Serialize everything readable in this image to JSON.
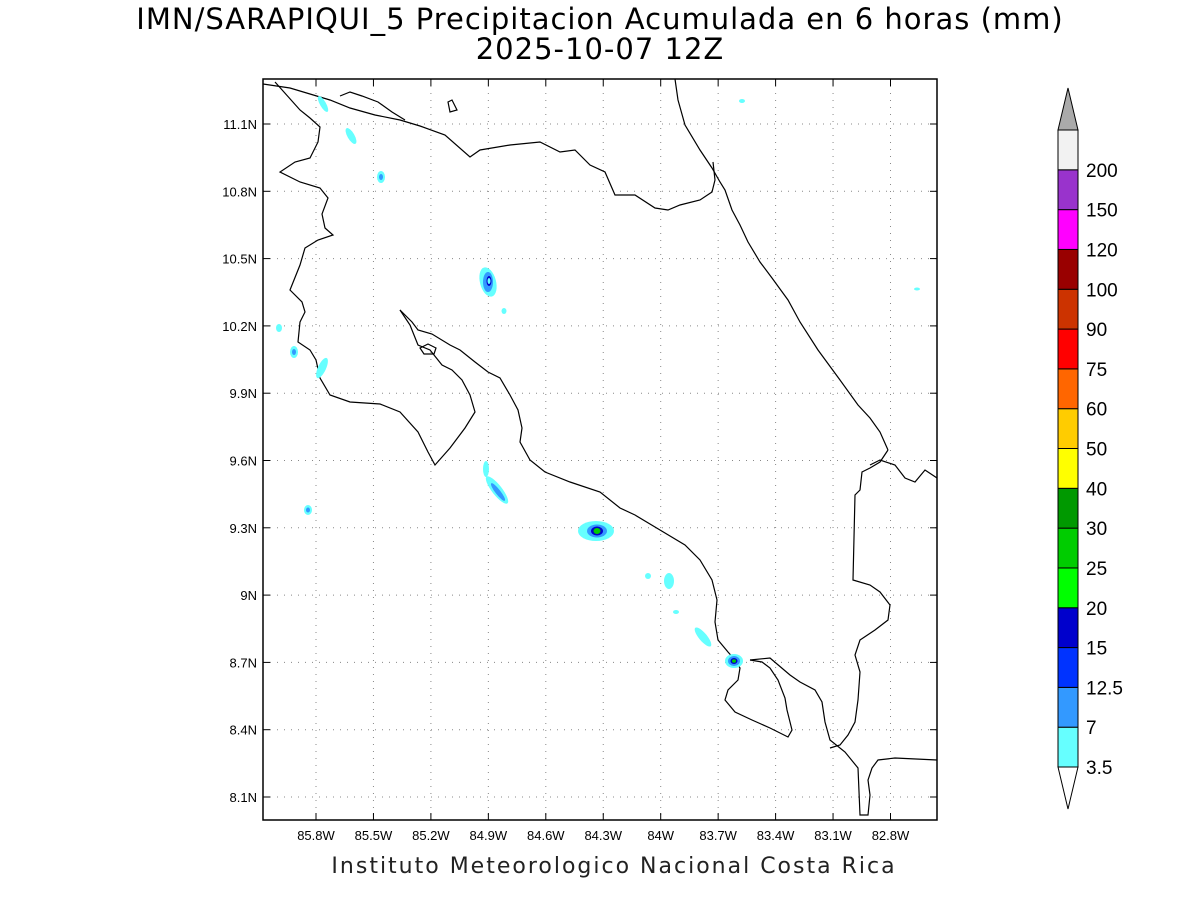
{
  "title": {
    "line1": "IMN/SARAPIQUI_5 Precipitacion Acumulada en 6 horas (mm)",
    "line2": "2025-10-07 12Z"
  },
  "footer": "Instituto Meteorologico Nacional Costa Rica",
  "map": {
    "lon_labels": [
      "85.8W",
      "85.5W",
      "85.2W",
      "84.9W",
      "84.6W",
      "84.3W",
      "84W",
      "83.7W",
      "83.4W",
      "83.1W",
      "82.8W"
    ],
    "lat_labels": [
      "11.1N",
      "10.8N",
      "10.5N",
      "10.2N",
      "9.9N",
      "9.6N",
      "9.3N",
      "9N",
      "8.7N",
      "8.4N",
      "8.1N"
    ],
    "grid": "dotted",
    "coastline_color": "#000000"
  },
  "colorbar": {
    "labels": [
      "3.5",
      "7",
      "12.5",
      "15",
      "20",
      "25",
      "30",
      "40",
      "50",
      "60",
      "75",
      "90",
      "100",
      "120",
      "150",
      "200"
    ],
    "colors": [
      "#66ffff",
      "#3399ff",
      "#0033ff",
      "#0000cc",
      "#00ff00",
      "#00cc00",
      "#009900",
      "#ffff00",
      "#ffcc00",
      "#ff6600",
      "#ff0000",
      "#cc3300",
      "#990000",
      "#ff00ff",
      "#9933cc",
      "#f2f2f2"
    ],
    "under_color": "#ffffff",
    "over_color": "#aaaaaa"
  }
}
